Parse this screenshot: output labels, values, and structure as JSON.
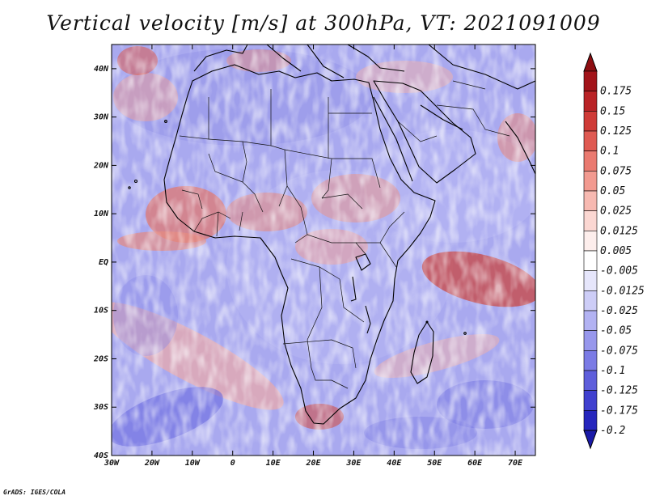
{
  "title": "Vertical velocity [m/s] at 300hPa, VT: 2021091009",
  "credit": "GrADS: IGES/COLA",
  "map": {
    "lon_range": [
      -30,
      75
    ],
    "lat_range": [
      -40,
      45
    ],
    "lat_ticks": [
      {
        "value": 40,
        "label": "40N"
      },
      {
        "value": 30,
        "label": "30N"
      },
      {
        "value": 20,
        "label": "20N"
      },
      {
        "value": 10,
        "label": "10N"
      },
      {
        "value": 0,
        "label": "EQ"
      },
      {
        "value": -10,
        "label": "10S"
      },
      {
        "value": -20,
        "label": "20S"
      },
      {
        "value": -30,
        "label": "30S"
      },
      {
        "value": -40,
        "label": "40S"
      }
    ],
    "lon_ticks": [
      {
        "value": -30,
        "label": "30W"
      },
      {
        "value": -20,
        "label": "20W"
      },
      {
        "value": -10,
        "label": "10W"
      },
      {
        "value": 0,
        "label": "0"
      },
      {
        "value": 10,
        "label": "10E"
      },
      {
        "value": 20,
        "label": "20E"
      },
      {
        "value": 30,
        "label": "30E"
      },
      {
        "value": 40,
        "label": "40E"
      },
      {
        "value": 50,
        "label": "50E"
      },
      {
        "value": 60,
        "label": "60E"
      },
      {
        "value": 70,
        "label": "70E"
      }
    ]
  },
  "colorbar": {
    "levels": [
      {
        "label": "0.175",
        "color": "#a2141a"
      },
      {
        "label": "0.15",
        "color": "#b92326"
      },
      {
        "label": "0.125",
        "color": "#cf3b37"
      },
      {
        "label": "0.1",
        "color": "#df5a52"
      },
      {
        "label": "0.075",
        "color": "#ea7a70"
      },
      {
        "label": "0.05",
        "color": "#f29a90"
      },
      {
        "label": "0.025",
        "color": "#f7b9b1"
      },
      {
        "label": "0.0125",
        "color": "#fbd7d2"
      },
      {
        "label": "0.005",
        "color": "#fdeeec"
      },
      {
        "label": "-0.005",
        "color": "#ffffff"
      },
      {
        "label": "-0.0125",
        "color": "#e6e6fb"
      },
      {
        "label": "-0.025",
        "color": "#cdcdf7"
      },
      {
        "label": "-0.05",
        "color": "#b2b2f2"
      },
      {
        "label": "-0.075",
        "color": "#9797ec"
      },
      {
        "label": "-0.1",
        "color": "#7b7be5"
      },
      {
        "label": "-0.125",
        "color": "#5e5edb"
      },
      {
        "label": "-0.175",
        "color": "#4040cf"
      },
      {
        "label": "-0.2",
        "color": "#2626bd"
      }
    ],
    "top_color": "#8e0e12",
    "bottom_color": "#1a1aa8"
  }
}
